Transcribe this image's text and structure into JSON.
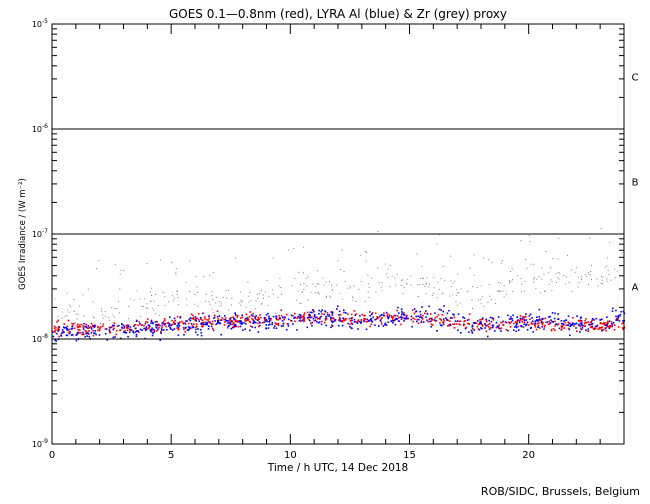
{
  "chart_data": {
    "type": "scatter",
    "title": "GOES 0.1—0.8nm (red), LYRA Al (blue) & Zr (grey) proxy",
    "xlabel": "Time / h UTC, 14 Dec 2018",
    "ylabel": "GOES Irradiance / (W m⁻²)",
    "xlim": [
      0,
      24
    ],
    "ylim": [
      1e-09,
      1e-05
    ],
    "yscale": "log",
    "x_ticks": [
      "0",
      "5",
      "10",
      "15",
      "20"
    ],
    "x_tick_values": [
      0,
      5,
      10,
      15,
      20
    ],
    "y_ticks": [
      {
        "base": "10",
        "exp": "-9",
        "value": 1e-09
      },
      {
        "base": "10",
        "exp": "-8",
        "value": 1e-08
      },
      {
        "base": "10",
        "exp": "-7",
        "value": 1e-07
      },
      {
        "base": "10",
        "exp": "-6",
        "value": 1e-06
      },
      {
        "base": "10",
        "exp": "-5",
        "value": 1e-05
      }
    ],
    "flare_classes": [
      {
        "label": "C",
        "lower": 1e-06
      },
      {
        "label": "B",
        "lower": 1e-07
      },
      {
        "label": "A",
        "lower": 1e-08
      }
    ],
    "hours": [
      0,
      1,
      2,
      3,
      4,
      5,
      6,
      7,
      8,
      9,
      10,
      11,
      12,
      13,
      14,
      15,
      16,
      17,
      18,
      19,
      20,
      21,
      22,
      23,
      24
    ],
    "series": [
      {
        "name": "GOES 0.1-0.8nm",
        "color": "#ff0000",
        "hourly_approx": [
          1.3e-08,
          1.25e-08,
          1.3e-08,
          1.3e-08,
          1.3e-08,
          1.4e-08,
          1.5e-08,
          1.5e-08,
          1.55e-08,
          1.55e-08,
          1.6e-08,
          1.65e-08,
          1.6e-08,
          1.55e-08,
          1.6e-08,
          1.65e-08,
          1.6e-08,
          1.45e-08,
          1.4e-08,
          1.45e-08,
          1.5e-08,
          1.4e-08,
          1.4e-08,
          1.35e-08,
          1.4e-08
        ]
      },
      {
        "name": "LYRA Al proxy",
        "color": "#0000ff",
        "hourly_approx": [
          1.2e-08,
          1.15e-08,
          1.2e-08,
          1.25e-08,
          1.25e-08,
          1.35e-08,
          1.4e-08,
          1.45e-08,
          1.5e-08,
          1.5e-08,
          1.55e-08,
          1.6e-08,
          1.55e-08,
          1.55e-08,
          1.6e-08,
          1.7e-08,
          1.6e-08,
          1.5e-08,
          1.35e-08,
          1.45e-08,
          1.5e-08,
          1.5e-08,
          1.4e-08,
          1.45e-08,
          1.7e-08
        ]
      },
      {
        "name": "LYRA Zr proxy",
        "color": "#808080",
        "hourly_approx": [
          1.3e-08,
          1.6e-08,
          1.8e-08,
          1.9e-08,
          2.2e-08,
          2.4e-08,
          2.3e-08,
          2.2e-08,
          2.3e-08,
          2.6e-08,
          3e-08,
          3.2e-08,
          2.8e-08,
          3e-08,
          3.8e-08,
          3.4e-08,
          3.2e-08,
          3e-08,
          2.5e-08,
          3.3e-08,
          4e-08,
          3.5e-08,
          4e-08,
          4.2e-08,
          4.5e-08
        ]
      }
    ]
  },
  "footer": {
    "credit": "ROB/SIDC, Brussels, Belgium"
  }
}
